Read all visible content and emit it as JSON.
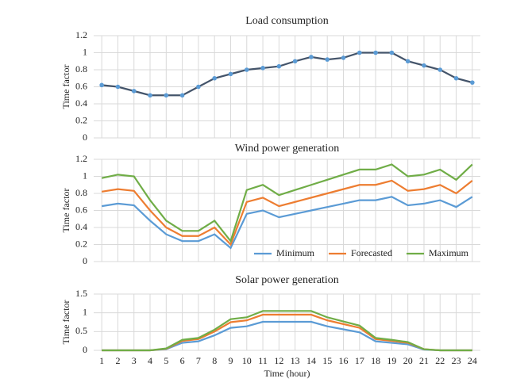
{
  "chart_data": [
    {
      "type": "line",
      "title": "Load consumption",
      "ylabel": "Time factor",
      "ylabel_color": "#7f7f7f",
      "x": [
        1,
        2,
        3,
        4,
        5,
        6,
        7,
        8,
        9,
        10,
        11,
        12,
        13,
        14,
        15,
        16,
        17,
        18,
        19,
        20,
        21,
        22,
        23,
        24
      ],
      "xlim": [
        0.5,
        24.5
      ],
      "values": [
        0.62,
        0.6,
        0.55,
        0.5,
        0.5,
        0.5,
        0.6,
        0.7,
        0.75,
        0.8,
        0.82,
        0.84,
        0.9,
        0.95,
        0.92,
        0.94,
        1.0,
        1.0,
        1.0,
        0.9,
        0.85,
        0.8,
        0.7,
        0.65
      ],
      "color": "#44546a",
      "marker_color": "#5b9bd5",
      "ylim": [
        0,
        1.2
      ],
      "yticks": [
        0,
        0.2,
        0.4,
        0.6,
        0.8,
        1,
        1.2
      ],
      "grid": true
    },
    {
      "type": "line",
      "title": "Wind power generation",
      "ylabel": "Time factor",
      "x": [
        1,
        2,
        3,
        4,
        5,
        6,
        7,
        8,
        9,
        10,
        11,
        12,
        13,
        14,
        15,
        16,
        17,
        18,
        19,
        20,
        21,
        22,
        23,
        24
      ],
      "xlim": [
        0.5,
        24.5
      ],
      "series": [
        {
          "name": "Minimum",
          "color": "#5b9bd5",
          "values": [
            0.65,
            0.68,
            0.66,
            0.48,
            0.32,
            0.24,
            0.24,
            0.32,
            0.16,
            0.56,
            0.6,
            0.52,
            0.56,
            0.6,
            0.64,
            0.68,
            0.72,
            0.72,
            0.76,
            0.66,
            0.68,
            0.72,
            0.64,
            0.76
          ]
        },
        {
          "name": "Forecasted",
          "color": "#ed7d31",
          "values": [
            0.82,
            0.85,
            0.83,
            0.6,
            0.4,
            0.3,
            0.3,
            0.4,
            0.2,
            0.7,
            0.75,
            0.65,
            0.7,
            0.75,
            0.8,
            0.85,
            0.9,
            0.9,
            0.95,
            0.83,
            0.85,
            0.9,
            0.8,
            0.95
          ]
        },
        {
          "name": "Maximum",
          "color": "#70ad47",
          "values": [
            0.98,
            1.02,
            1.0,
            0.72,
            0.48,
            0.36,
            0.36,
            0.48,
            0.24,
            0.84,
            0.9,
            0.78,
            0.84,
            0.9,
            0.96,
            1.02,
            1.08,
            1.08,
            1.14,
            1.0,
            1.02,
            1.08,
            0.96,
            1.14
          ]
        }
      ],
      "ylim": [
        0,
        1.2
      ],
      "yticks": [
        0,
        0.2,
        0.4,
        0.6,
        0.8,
        1,
        1.2
      ],
      "grid": true,
      "legend": "bottom-right"
    },
    {
      "type": "line",
      "title": "Solar power generation",
      "ylabel": "Time factor",
      "xlabel": "Time (hour)",
      "x": [
        1,
        2,
        3,
        4,
        5,
        6,
        7,
        8,
        9,
        10,
        11,
        12,
        13,
        14,
        15,
        16,
        17,
        18,
        19,
        20,
        21,
        22,
        23,
        24
      ],
      "xlim": [
        0.5,
        24.5
      ],
      "xticks": [
        1,
        2,
        3,
        4,
        5,
        6,
        7,
        8,
        9,
        10,
        11,
        12,
        13,
        14,
        15,
        16,
        17,
        18,
        19,
        20,
        21,
        22,
        23,
        24
      ],
      "series": [
        {
          "color": "#5b9bd5",
          "values": [
            0,
            0,
            0,
            0,
            0.03,
            0.2,
            0.24,
            0.4,
            0.6,
            0.64,
            0.76,
            0.76,
            0.76,
            0.76,
            0.64,
            0.56,
            0.48,
            0.24,
            0.2,
            0.16,
            0.02,
            0,
            0,
            0
          ]
        },
        {
          "color": "#ed7d31",
          "values": [
            0,
            0,
            0,
            0,
            0.04,
            0.25,
            0.3,
            0.5,
            0.75,
            0.8,
            0.95,
            0.95,
            0.95,
            0.95,
            0.8,
            0.7,
            0.6,
            0.3,
            0.25,
            0.2,
            0.03,
            0,
            0,
            0
          ]
        },
        {
          "color": "#70ad47",
          "values": [
            0,
            0,
            0,
            0,
            0.05,
            0.28,
            0.33,
            0.55,
            0.83,
            0.88,
            1.05,
            1.05,
            1.05,
            1.05,
            0.88,
            0.77,
            0.66,
            0.33,
            0.28,
            0.22,
            0.03,
            0,
            0,
            0
          ]
        }
      ],
      "ylim": [
        0,
        1.5
      ],
      "yticks": [
        0,
        0.5,
        1,
        1.5
      ],
      "grid": true
    }
  ]
}
